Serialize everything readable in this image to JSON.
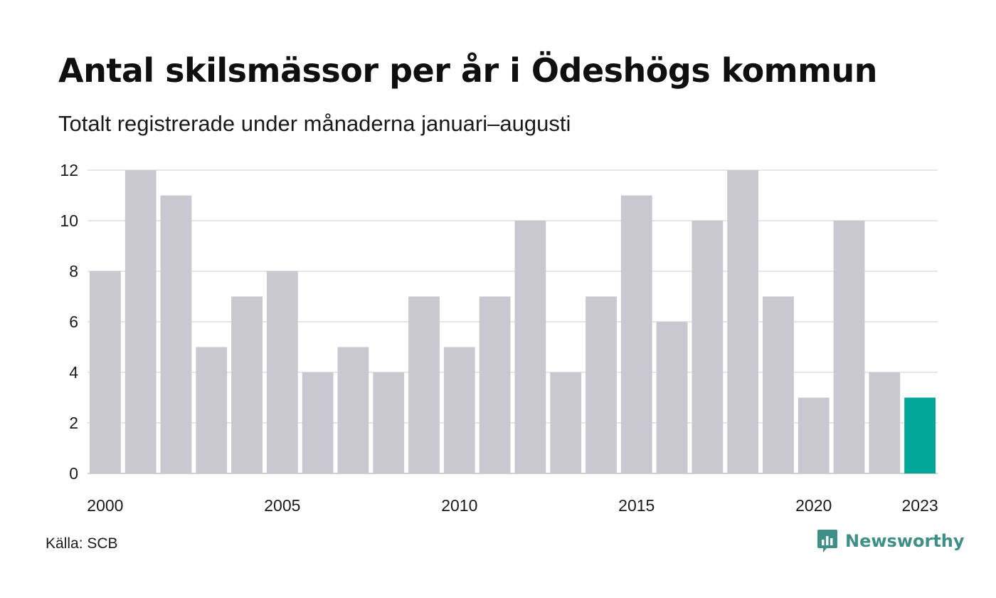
{
  "title": "Antal skilsmässor per år i Ödeshögs kommun",
  "subtitle": "Totalt registrerade under månaderna januari–augusti",
  "source": "Källa: SCB",
  "brand": "Newsworthy",
  "icon": "newsworthy-logo-icon",
  "colors": {
    "bar": "#c9c8d0",
    "highlight": "#00a698",
    "grid": "#e6e6e6",
    "axis": "#d0d0d0",
    "brand": "#3f8f86"
  },
  "chart_data": {
    "type": "bar",
    "title": "Antal skilsmässor per år i Ödeshögs kommun",
    "subtitle": "Totalt registrerade under månaderna januari–augusti",
    "categories": [
      "2000",
      "2001",
      "2002",
      "2003",
      "2004",
      "2005",
      "2006",
      "2007",
      "2008",
      "2009",
      "2010",
      "2011",
      "2012",
      "2013",
      "2014",
      "2015",
      "2016",
      "2017",
      "2018",
      "2019",
      "2020",
      "2021",
      "2022",
      "2023"
    ],
    "values": [
      8,
      12,
      11,
      5,
      7,
      8,
      4,
      5,
      4,
      7,
      5,
      7,
      10,
      4,
      7,
      11,
      6,
      10,
      12,
      7,
      3,
      10,
      4,
      3
    ],
    "highlight_category": "2023",
    "x_tick_labels": [
      "2000",
      "2005",
      "2010",
      "2015",
      "2020",
      "2023"
    ],
    "y_ticks": [
      0,
      2,
      4,
      6,
      8,
      10,
      12
    ],
    "ylim": [
      0,
      12
    ],
    "xlabel": "",
    "ylabel": "",
    "grid": "horizontal",
    "legend": "none"
  }
}
